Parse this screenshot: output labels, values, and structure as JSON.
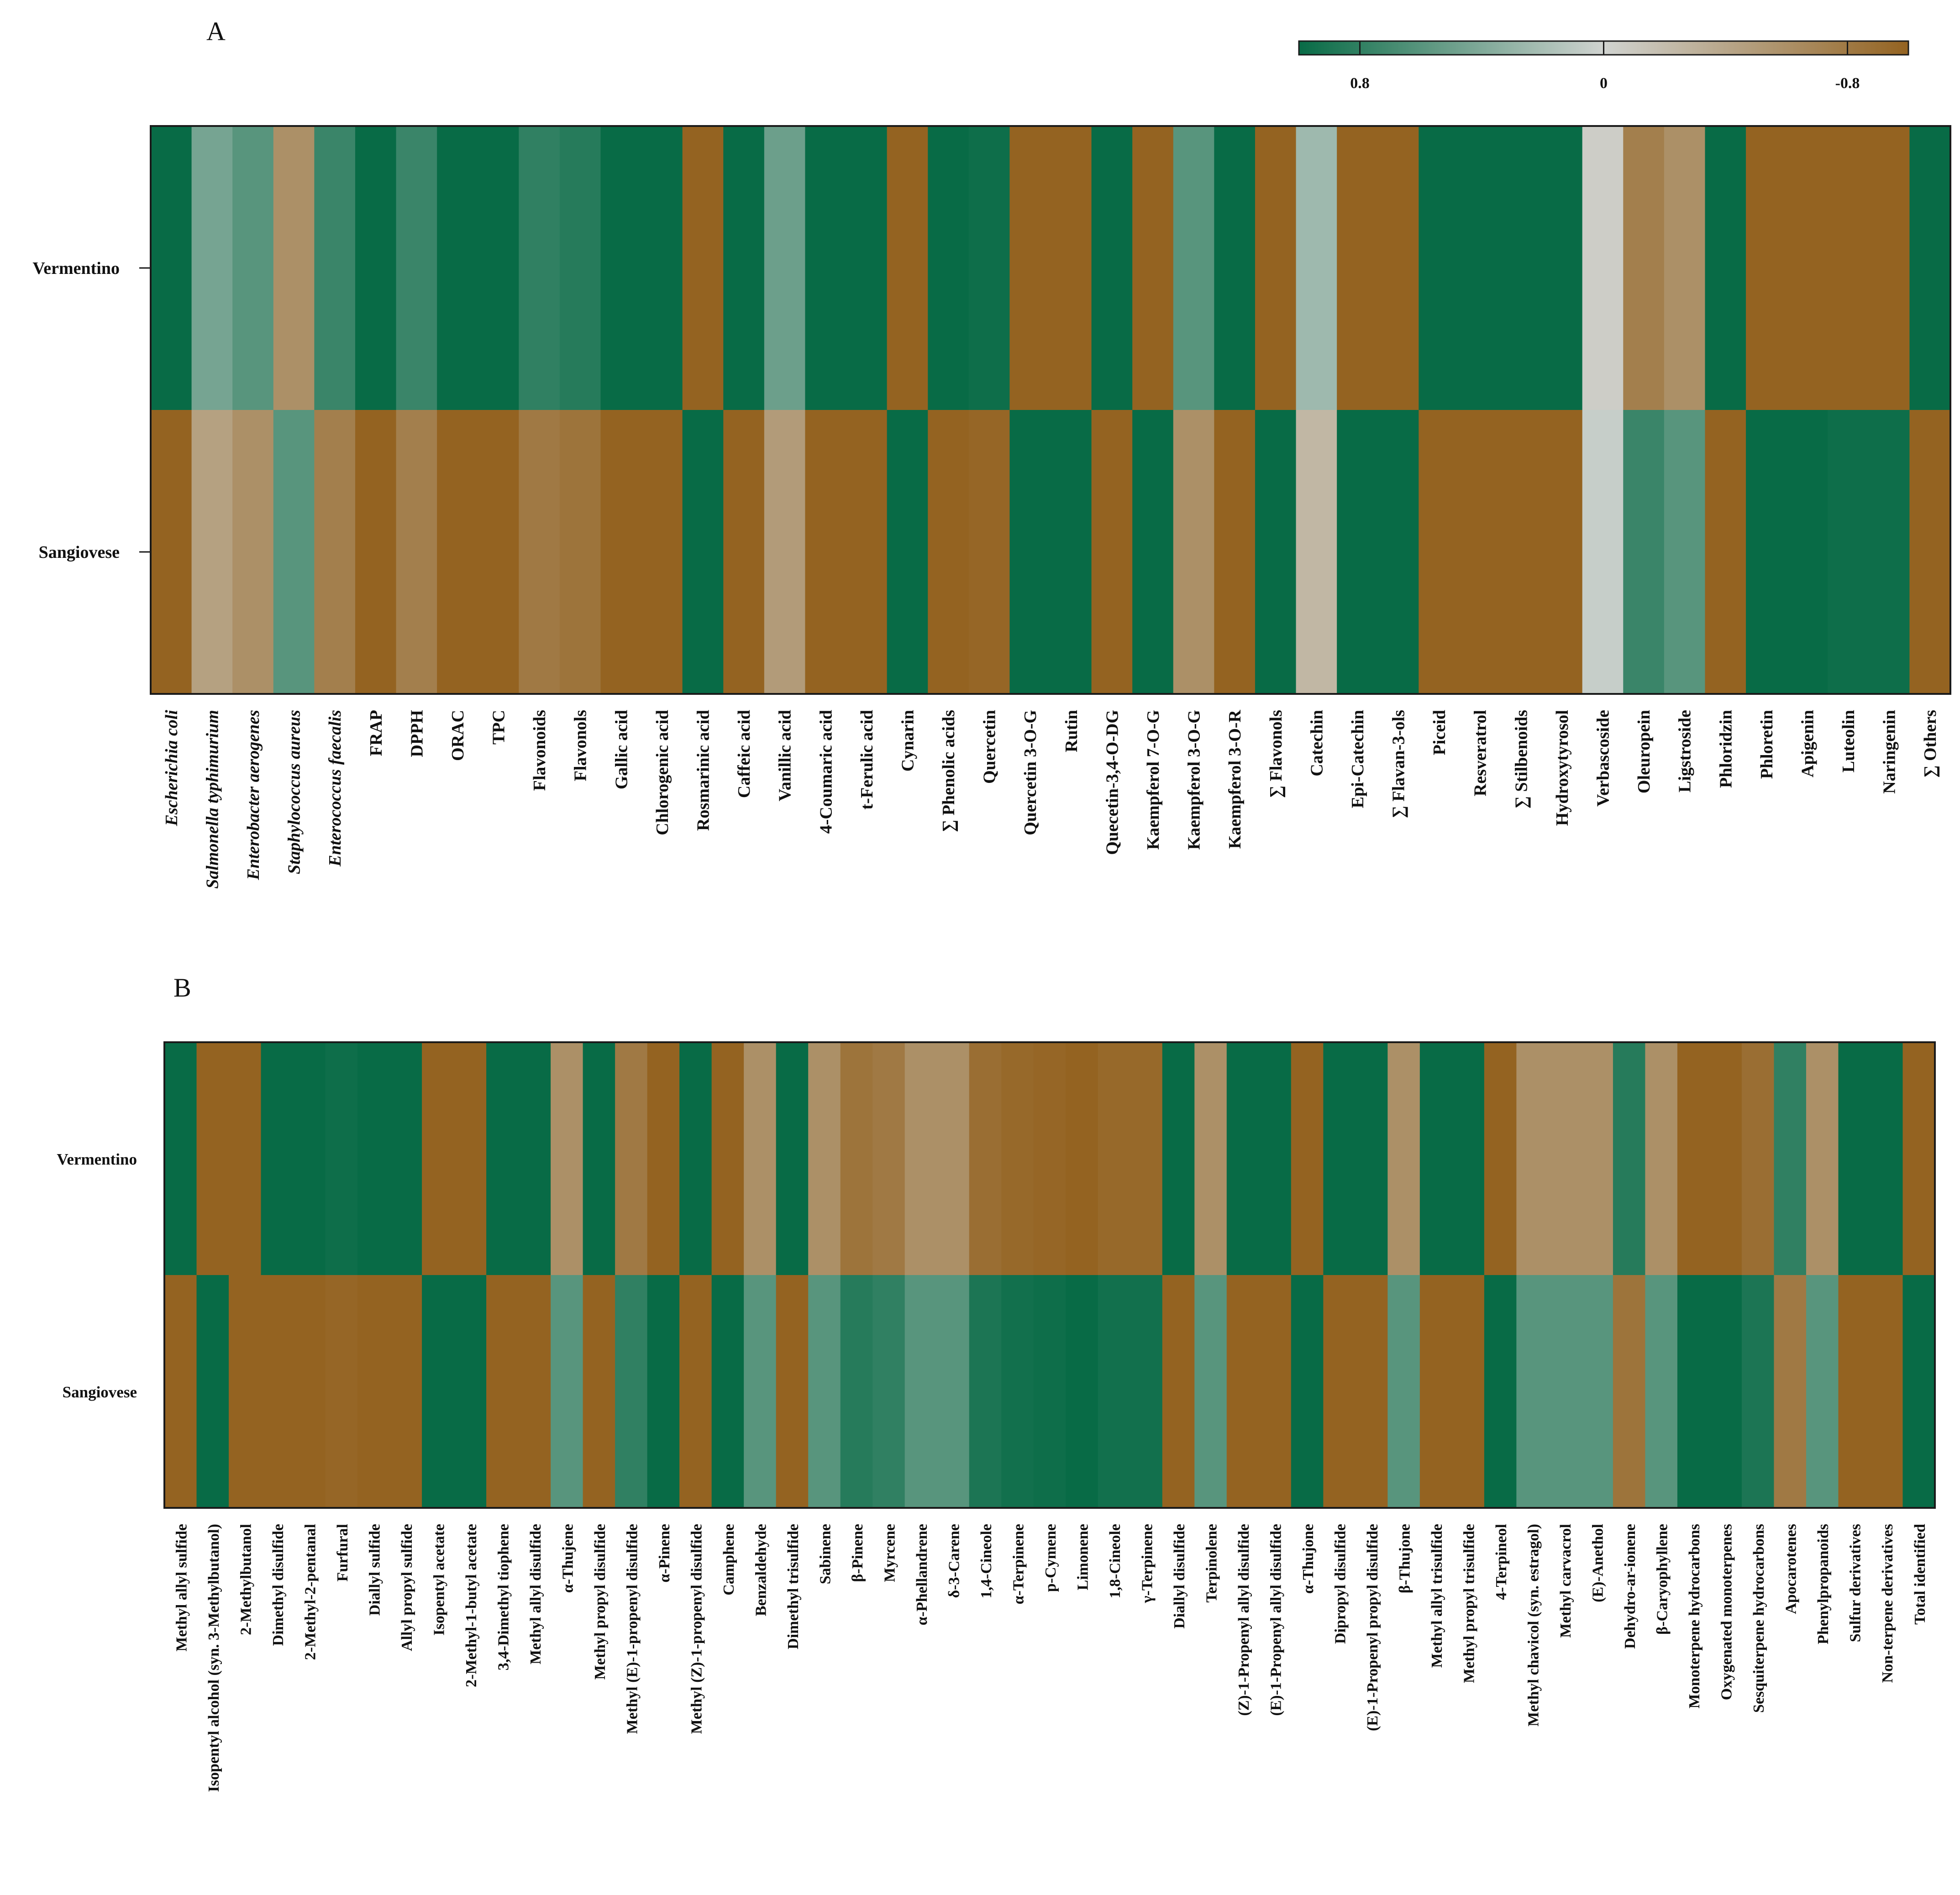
{
  "colors": {
    "green": "#086b46",
    "light": "#d0d3d0",
    "brown": "#946321",
    "frame": "#1a1a1a"
  },
  "colorbar": {
    "ticks": [
      0.8,
      0,
      -0.8
    ],
    "labels": [
      "0.8",
      "0",
      "-0.8"
    ],
    "range": [
      1,
      -1
    ]
  },
  "panels": [
    {
      "label": "A",
      "rows": [
        "Vermentino",
        "Sangiovese"
      ],
      "columns": [
        "Escherichia coli",
        "Salmonella typhimurium",
        "Enterobacter aerogenes",
        "Staphylococcus aureus",
        "Enterococcus faecalis",
        "FRAP",
        "DPPH",
        "ORAC",
        "TPC",
        "Flavonoids",
        "Flavonols",
        "Gallic acid",
        "Chlorogenic acid",
        "Rosmarinic acid",
        "Caffeic acid",
        "Vanillic acid",
        "4-Coumaric acid",
        "t-Ferulic acid",
        "Cynarin",
        "∑ Phenolic acids",
        "Quercetin",
        "Quercetin 3-O-G",
        "Rutin",
        "Quecetin-3,4-O-DG",
        "Kaempferol 7-O-G",
        "Kaempferol 3-O-G",
        "Kaempferol 3-O-R",
        "∑ Flavonols",
        "Catechin",
        "Epi-Catechin",
        "∑ Flavan-3-ols",
        "Piceid",
        "Resveratrol",
        "∑ Stilbenoids",
        "Hydroxytyrosol",
        "Verbascoside",
        "Oleuropein",
        "Ligstroside",
        "Phloridzin",
        "Phloretin",
        "Apigenin",
        "Luteolin",
        "Naringenin",
        "∑ Others"
      ],
      "italic_columns": [
        0,
        1,
        2,
        3,
        4
      ]
    },
    {
      "label": "B",
      "rows": [
        "Vermentino",
        "Sangiovese"
      ],
      "columns": [
        "Methyl allyl sulfide",
        "Isopentyl alcohol (syn. 3-Methylbutanol)",
        "2-Methylbutanol",
        "Dimethyl disulfide",
        "2-Methyl-2-pentanal",
        "Furfural",
        "Diallyl sulfide",
        "Allyl propyl sulfide",
        "Isopentyl acetate",
        "2-Methyl-1-butyl acetate",
        "3,4-Dimethyl tiophene",
        "Methyl allyl disulfide",
        "α-Thujene",
        "Methyl propyl disulfide",
        "Methyl (E)-1-propenyl disulfide",
        "α-Pinene",
        "Methyl (Z)-1-propenyl disulfide",
        "Camphene",
        "Benzaldehyde",
        "Dimethyl trisulfide",
        "Sabinene",
        "β-Pinene",
        "Myrcene",
        "α-Phellandrene",
        "δ-3-Carene",
        "1,4-Cineole",
        "α-Terpinene",
        "p-Cymene",
        "Limonene",
        "1,8-Cineole",
        "γ-Terpinene",
        "Diallyl disulfide",
        "Terpinolene",
        "(Z)-1-Propenyl allyl disulfide",
        "(E)-1-Propenyl allyl disulfide",
        "α-Thujone",
        "Dipropyl disulfide",
        "(E)-1-Propenyl propyl disulfide",
        "β-Thujone",
        "Methyl allyl trisulfide",
        "Methyl propyl trisulfide",
        "4-Terpineol",
        "Methyl chavicol (syn. estragol)",
        "Methyl carvacrol",
        "(E)-Anethol",
        "Dehydro-ar-ionene",
        "β-Caryophyllene",
        "Monoterpene hydrocarbons",
        "Oxygenated monoterpenes",
        "Sesquiterpene hydrocarbons",
        "Apocarotenes",
        "Phenylpropanoids",
        "Sulfur derivatives",
        "Non-terpene derivatives",
        "Total identified"
      ],
      "italic_columns": []
    }
  ],
  "chart_data": [
    {
      "type": "heatmap",
      "title": "A",
      "rows": [
        "Vermentino",
        "Sangiovese"
      ],
      "color_scale": {
        "min": -1,
        "max": 1,
        "high_color": "green",
        "low_color": "brown",
        "tick_labels": [
          "0.8",
          "0",
          "-0.8"
        ]
      },
      "values": [
        [
          1.0,
          0.45,
          0.6,
          -0.6,
          0.75,
          1.0,
          0.75,
          1.0,
          1.0,
          0.8,
          0.85,
          1.0,
          1.0,
          -1.0,
          1.0,
          0.5,
          1.0,
          1.0,
          -1.0,
          1.0,
          0.97,
          -1.0,
          -1.0,
          1.0,
          -1.0,
          0.6,
          1.0,
          -1.0,
          0.25,
          -1.0,
          -1.0,
          1.0,
          1.0,
          1.0,
          1.0,
          -0.05,
          -0.75,
          -0.6,
          1.0,
          -1.0,
          -1.0,
          -1.0,
          -1.0,
          1.0
        ],
        [
          -1.0,
          -0.45,
          -0.6,
          0.6,
          -0.75,
          -1.0,
          -0.75,
          -1.0,
          -1.0,
          -0.8,
          -0.85,
          -1.0,
          -1.0,
          1.0,
          -1.0,
          -0.5,
          -1.0,
          -1.0,
          1.0,
          -1.0,
          -0.97,
          1.0,
          1.0,
          -1.0,
          1.0,
          -0.6,
          -1.0,
          1.0,
          -0.25,
          1.0,
          1.0,
          -1.0,
          -1.0,
          -1.0,
          -1.0,
          0.05,
          0.75,
          0.6,
          -1.0,
          1.0,
          1.0,
          0.97,
          0.97,
          -1.0
        ]
      ]
    },
    {
      "type": "heatmap",
      "title": "B",
      "rows": [
        "Vermentino",
        "Sangiovese"
      ],
      "color_scale": {
        "min": -1,
        "max": 1,
        "high_color": "green",
        "low_color": "brown"
      },
      "values": [
        [
          1.0,
          -1.0,
          -1.0,
          1.0,
          1.0,
          0.97,
          1.0,
          1.0,
          -1.0,
          -1.0,
          1.0,
          1.0,
          -0.6,
          1.0,
          -0.8,
          -1.0,
          1.0,
          -1.0,
          -0.6,
          1.0,
          -0.6,
          -0.85,
          -0.8,
          -0.6,
          -0.6,
          -0.9,
          -0.95,
          -0.97,
          -1.0,
          -0.95,
          -0.95,
          1.0,
          -0.6,
          1.0,
          1.0,
          -1.0,
          1.0,
          1.0,
          -0.6,
          1.0,
          1.0,
          -1.0,
          -0.6,
          -0.6,
          -0.6,
          0.85,
          -0.6,
          -1.0,
          -1.0,
          -0.9,
          0.8,
          -0.6,
          1.0,
          1.0,
          -1.0
        ],
        [
          -1.0,
          1.0,
          -1.0,
          -1.0,
          -1.0,
          -0.97,
          -1.0,
          -1.0,
          1.0,
          1.0,
          -1.0,
          -1.0,
          0.6,
          -1.0,
          0.8,
          1.0,
          -1.0,
          1.0,
          0.6,
          -1.0,
          0.6,
          0.85,
          0.8,
          0.6,
          0.6,
          0.9,
          0.95,
          0.97,
          1.0,
          0.95,
          0.95,
          -1.0,
          0.6,
          -1.0,
          -1.0,
          1.0,
          -1.0,
          -1.0,
          0.6,
          -1.0,
          -1.0,
          1.0,
          0.6,
          0.6,
          0.6,
          -0.85,
          0.6,
          1.0,
          1.0,
          0.9,
          -0.8,
          0.6,
          -1.0,
          -1.0,
          1.0
        ]
      ]
    }
  ]
}
